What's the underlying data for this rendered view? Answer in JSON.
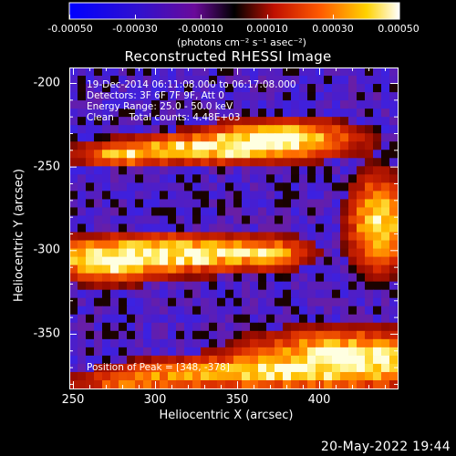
{
  "colorbar": {
    "tick_labels": [
      "-0.00050",
      "-0.00030",
      "-0.00010",
      "0.00010",
      "0.00030",
      "0.00050"
    ],
    "units": "(photons cm⁻² s⁻¹ asec⁻²)"
  },
  "plot": {
    "title": "Reconstructed RHESSI Image",
    "xlabel": "Heliocentric X (arcsec)",
    "ylabel": "Heliocentric Y (arcsec)",
    "xticks": [
      "250",
      "300",
      "350",
      "400"
    ],
    "yticks": [
      "-200",
      "-250",
      "-300",
      "-350"
    ]
  },
  "info": {
    "line1": "19-Dec-2014 06:11:08.000 to 06:17:08.000",
    "line2": "Detectors: 3F 6F 7F 9F, Att 0",
    "line3": "Energy Range: 25.0 - 50.0 keV",
    "line4": "Clean     Total counts: 4.48E+03",
    "peak": "Position of Peak = [348, -378]"
  },
  "timestamp": "20-May-2022 19:44"
}
